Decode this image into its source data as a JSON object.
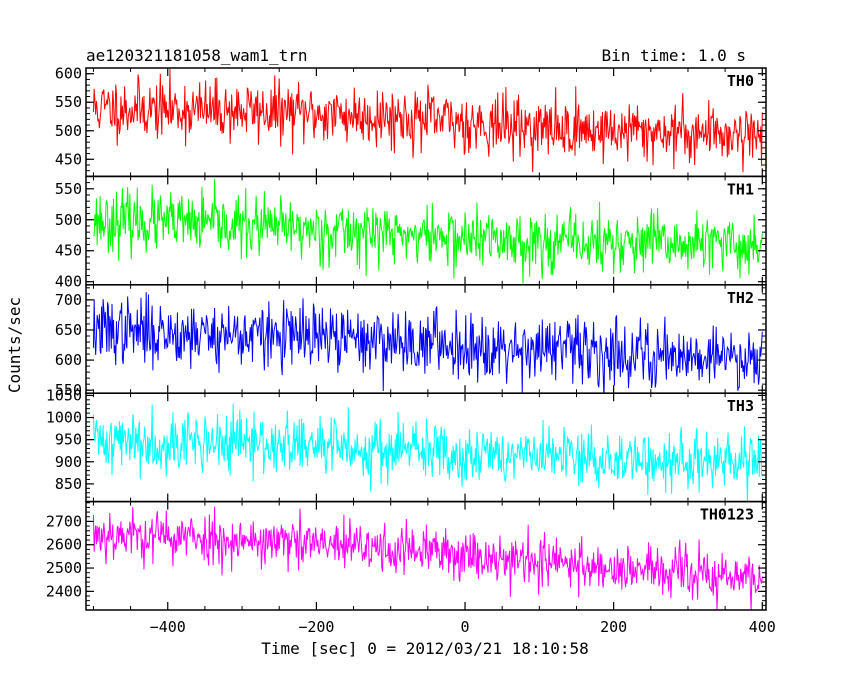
{
  "header": {
    "source": "ae120321181058_wam1_trn",
    "bin_time": "Bin time: 1.0 s"
  },
  "chart_data": {
    "type": "line",
    "xlabel": "Time [sec] 0 = 2012/03/21 18:10:58",
    "ylabel": "Counts/sec",
    "xlim": [
      -510,
      405
    ],
    "x_ticks": [
      -400,
      -200,
      0,
      200,
      400
    ],
    "x_tick_labels": [
      "−400",
      "−200",
      "0",
      "200",
      "400"
    ],
    "x_range": [
      -500,
      400
    ],
    "bin_time_s": 1.0,
    "grid": false,
    "panels": [
      {
        "name": "TH0",
        "color": "#ff0000",
        "ylim": [
          420,
          610
        ],
        "yticks": [
          450,
          500,
          550,
          600
        ],
        "trend": [
          [
            -500,
            540
          ],
          [
            -300,
            535
          ],
          [
            -100,
            525
          ],
          [
            0,
            515
          ],
          [
            100,
            505
          ],
          [
            200,
            500
          ],
          [
            400,
            495
          ]
        ],
        "noise_sd": 26,
        "seed": 11
      },
      {
        "name": "TH1",
        "color": "#00ff00",
        "ylim": [
          395,
          570
        ],
        "yticks": [
          400,
          450,
          500,
          550
        ],
        "trend": [
          [
            -500,
            500
          ],
          [
            -300,
            490
          ],
          [
            -100,
            478
          ],
          [
            0,
            470
          ],
          [
            100,
            465
          ],
          [
            200,
            462
          ],
          [
            400,
            458
          ]
        ],
        "noise_sd": 24,
        "seed": 23
      },
      {
        "name": "TH2",
        "color": "#0000ff",
        "ylim": [
          545,
          725
        ],
        "yticks": [
          550,
          600,
          650,
          700
        ],
        "trend": [
          [
            -500,
            650
          ],
          [
            -300,
            642
          ],
          [
            -100,
            632
          ],
          [
            0,
            625
          ],
          [
            100,
            620
          ],
          [
            200,
            612
          ],
          [
            400,
            605
          ]
        ],
        "noise_sd": 27,
        "seed": 37
      },
      {
        "name": "TH3",
        "color": "#00ffff",
        "ylim": [
          810,
          1055
        ],
        "yticks": [
          850,
          900,
          950,
          1000,
          1050
        ],
        "trend": [
          [
            -500,
            950
          ],
          [
            -300,
            942
          ],
          [
            -100,
            928
          ],
          [
            0,
            920
          ],
          [
            100,
            912
          ],
          [
            200,
            905
          ],
          [
            400,
            895
          ]
        ],
        "noise_sd": 34,
        "seed": 41
      },
      {
        "name": "TH0123",
        "color": "#ff00ff",
        "ylim": [
          2320,
          2785
        ],
        "yticks": [
          2400,
          2500,
          2600,
          2700
        ],
        "trend": [
          [
            -500,
            2650
          ],
          [
            -300,
            2620
          ],
          [
            -100,
            2580
          ],
          [
            0,
            2560
          ],
          [
            100,
            2530
          ],
          [
            200,
            2500
          ],
          [
            400,
            2450
          ]
        ],
        "noise_sd": 55,
        "seed": 53
      }
    ]
  }
}
